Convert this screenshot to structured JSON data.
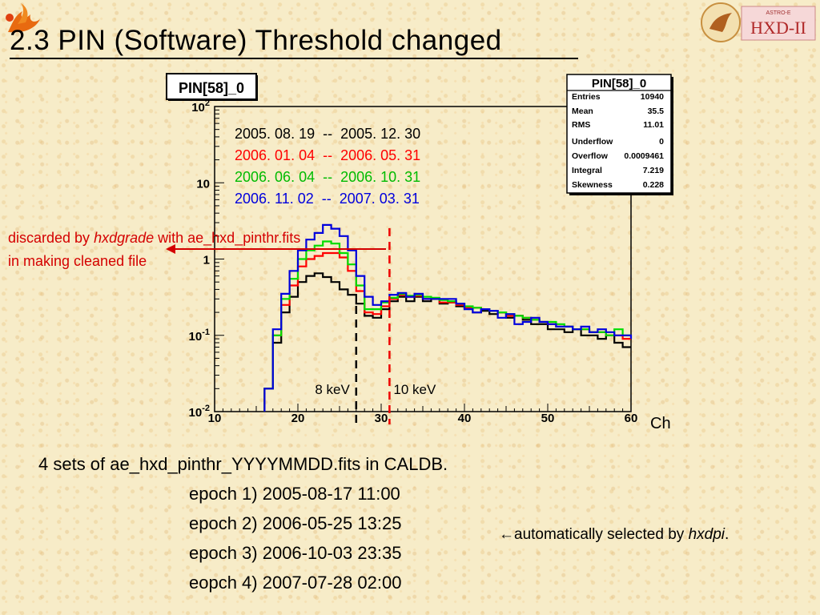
{
  "slide": {
    "title": "2.3 PIN (Software) Threshold changed"
  },
  "chart_data": {
    "type": "line",
    "histogram_title": "PIN[58]_0",
    "xlabel": "Ch",
    "ylabel": "",
    "xlim": [
      10,
      60
    ],
    "ylim": [
      0.01,
      100
    ],
    "log_y": true,
    "x_ticks": [
      "10",
      "20",
      "30",
      "40",
      "50",
      "60"
    ],
    "y_ticks": [
      "10-2",
      "10-1",
      "1",
      "10",
      "102"
    ],
    "bin_width": 1,
    "bin_start": 16,
    "series": [
      {
        "name": "2005. 08. 19  --  2005. 12. 30",
        "color": "#000000",
        "values": [
          0.02,
          0.08,
          0.2,
          0.32,
          0.5,
          0.6,
          0.65,
          0.58,
          0.5,
          0.4,
          0.34,
          0.26,
          0.18,
          0.17,
          0.22,
          0.28,
          0.32,
          0.28,
          0.32,
          0.28,
          0.3,
          0.26,
          0.27,
          0.24,
          0.23,
          0.2,
          0.21,
          0.19,
          0.2,
          0.17,
          0.18,
          0.16,
          0.14,
          0.14,
          0.12,
          0.12,
          0.11,
          0.12,
          0.1,
          0.1,
          0.09,
          0.1,
          0.08,
          0.07,
          0.07
        ]
      },
      {
        "name": "2006. 01. 04  --  2006. 05. 31",
        "color": "#ff0000",
        "values": [
          0.02,
          0.1,
          0.25,
          0.45,
          0.8,
          1.0,
          1.1,
          1.2,
          1.2,
          1.05,
          0.7,
          0.38,
          0.2,
          0.19,
          0.24,
          0.3,
          0.34,
          0.32,
          0.33,
          0.3,
          0.3,
          0.27,
          0.27,
          0.25,
          0.23,
          0.23,
          0.22,
          0.21,
          0.2,
          0.18,
          0.18,
          0.17,
          0.16,
          0.15,
          0.14,
          0.13,
          0.13,
          0.12,
          0.12,
          0.11,
          0.11,
          0.1,
          0.1,
          0.09,
          0.09
        ]
      },
      {
        "name": "2006. 06. 04  --  2006. 10. 31",
        "color": "#00dd00",
        "values": [
          0.02,
          0.1,
          0.3,
          0.55,
          1.0,
          1.3,
          1.5,
          1.7,
          1.6,
          1.2,
          0.85,
          0.45,
          0.22,
          0.22,
          0.27,
          0.31,
          0.35,
          0.33,
          0.34,
          0.32,
          0.31,
          0.29,
          0.28,
          0.26,
          0.24,
          0.23,
          0.22,
          0.21,
          0.2,
          0.19,
          0.18,
          0.17,
          0.16,
          0.15,
          0.15,
          0.14,
          0.13,
          0.12,
          0.12,
          0.11,
          0.11,
          0.1,
          0.12,
          0.1,
          0.1
        ]
      },
      {
        "name": "2006. 11. 02  --  2007. 03. 31",
        "color": "#0000dd",
        "values": [
          0.02,
          0.12,
          0.35,
          0.7,
          1.3,
          1.8,
          2.2,
          2.8,
          2.5,
          2.0,
          1.3,
          0.6,
          0.32,
          0.25,
          0.28,
          0.34,
          0.36,
          0.32,
          0.35,
          0.3,
          0.3,
          0.3,
          0.3,
          0.26,
          0.22,
          0.2,
          0.22,
          0.21,
          0.17,
          0.19,
          0.14,
          0.15,
          0.17,
          0.15,
          0.14,
          0.13,
          0.13,
          0.12,
          0.13,
          0.11,
          0.12,
          0.11,
          0.1,
          0.1,
          0.09
        ]
      }
    ],
    "stats_box": {
      "title": "PIN[58]_0",
      "rows": [
        {
          "label": "Entries",
          "value": "10940"
        },
        {
          "label": "Mean",
          "value": "35.5"
        },
        {
          "label": "RMS",
          "value": "11.01"
        },
        {
          "label": "Underflow",
          "value": "0"
        },
        {
          "label": "Overflow",
          "value": "0.0009461"
        },
        {
          "label": "Integral",
          "value": "7.219"
        },
        {
          "label": "Skewness",
          "value": "0.228"
        }
      ]
    },
    "threshold_lines": [
      {
        "x": 27,
        "label": "8 keV",
        "color": "#000000"
      },
      {
        "x": 31,
        "label": "10 keV",
        "color": "#ee0000"
      }
    ]
  },
  "annotations": {
    "discarded_line1_a": "discarded by ",
    "discarded_line1_b": "hxdgrade",
    "discarded_line1_c": " with ae_hxd_pinthr.fits",
    "discarded_line2": "in making cleaned file",
    "arrow_color": "#d40000"
  },
  "body": {
    "intro": "4 sets of ae_hxd_pinthr_YYYYMMDD.fits in CALDB.",
    "epochs": [
      "epoch 1) 2005-08-17 11:00",
      "epoch 2) 2006-05-25 13:25",
      "epoch 3) 2006-10-03 23:35",
      "eopch 4) 2007-07-28 02:00"
    ],
    "auto_arrow": "←",
    "auto_text": "automatically selected by ",
    "auto_tool": "hxdpi",
    "auto_end": "."
  },
  "logos": {
    "left_icon": "phoenix-logo-icon",
    "right_icon": "hxd-ii-logo-icon",
    "right_text": "HXD-II",
    "right_small": "ASTRO-E"
  }
}
